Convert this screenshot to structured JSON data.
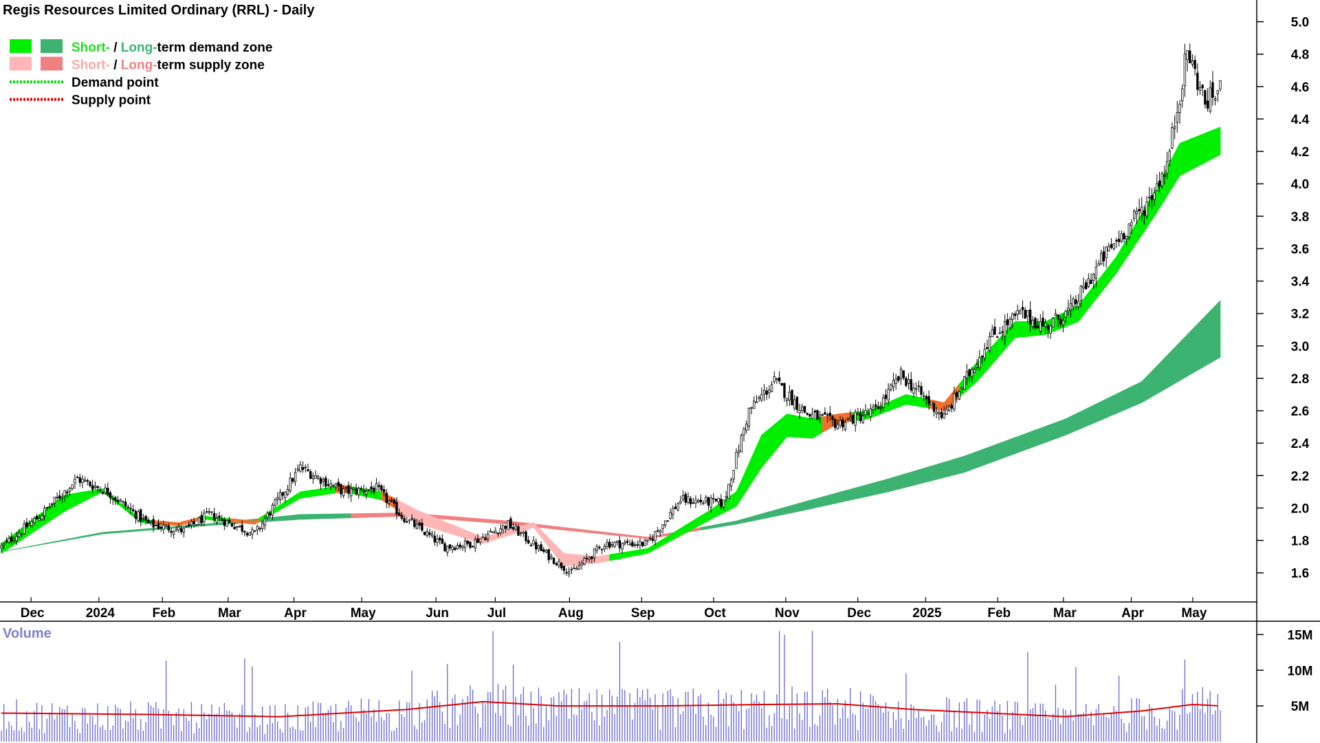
{
  "chart_data": {
    "type": "candlestick",
    "title": "Regis Resources Limited Ordinary (RRL) - Daily",
    "legend": [
      {
        "parts": [
          {
            "text": "Short-",
            "color": "#22dd22"
          },
          {
            "text": " / ",
            "color": "#000000"
          },
          {
            "text": "Long-",
            "color": "#3cb371"
          },
          {
            "text": "term demand zone",
            "color": "#000000"
          }
        ],
        "swatches": [
          "#00ee00",
          "#3cb371"
        ]
      },
      {
        "parts": [
          {
            "text": "Short-",
            "color": "#f5a9a9"
          },
          {
            "text": " / ",
            "color": "#000000"
          },
          {
            "text": "Long-",
            "color": "#f08080"
          },
          {
            "text": "term supply zone",
            "color": "#000000"
          }
        ],
        "swatches": [
          "#ffb6b6",
          "#f08080"
        ]
      },
      {
        "parts": [
          {
            "text": "Demand point",
            "color": "#000000"
          }
        ],
        "line": "#00dd00"
      },
      {
        "parts": [
          {
            "text": "Supply point",
            "color": "#000000"
          }
        ],
        "line": "#dd0000"
      }
    ],
    "x_tick_labels": [
      "Dec",
      "2024",
      "Feb",
      "Mar",
      "Apr",
      "May",
      "Jun",
      "Jul",
      "Aug",
      "Sep",
      "Oct",
      "Nov",
      "Dec",
      "2025",
      "Feb",
      "Mar",
      "Apr",
      "May"
    ],
    "y_tick_labels": [
      "1.6",
      "1.8",
      "2.0",
      "2.2",
      "2.4",
      "2.6",
      "2.8",
      "3.0",
      "3.2",
      "3.4",
      "3.6",
      "3.8",
      "4.0",
      "4.2",
      "4.4",
      "4.6",
      "4.8",
      "5.0"
    ],
    "ylim": [
      1.45,
      5.1
    ],
    "price_keypoints": [
      [
        0,
        1.76
      ],
      [
        15,
        1.95
      ],
      [
        30,
        2.18
      ],
      [
        42,
        2.1
      ],
      [
        58,
        1.9
      ],
      [
        72,
        1.86
      ],
      [
        82,
        1.96
      ],
      [
        100,
        1.84
      ],
      [
        118,
        2.25
      ],
      [
        135,
        2.1
      ],
      [
        148,
        2.12
      ],
      [
        158,
        1.95
      ],
      [
        175,
        1.76
      ],
      [
        185,
        1.78
      ],
      [
        200,
        1.9
      ],
      [
        212,
        1.75
      ],
      [
        225,
        1.6
      ],
      [
        238,
        1.78
      ],
      [
        255,
        1.78
      ],
      [
        268,
        2.05
      ],
      [
        285,
        2.03
      ],
      [
        295,
        2.6
      ],
      [
        305,
        2.78
      ],
      [
        318,
        2.58
      ],
      [
        330,
        2.52
      ],
      [
        345,
        2.6
      ],
      [
        355,
        2.82
      ],
      [
        372,
        2.56
      ],
      [
        390,
        3.05
      ],
      [
        402,
        3.2
      ],
      [
        412,
        3.12
      ],
      [
        422,
        3.22
      ],
      [
        435,
        3.55
      ],
      [
        452,
        3.88
      ],
      [
        460,
        4.12
      ],
      [
        468,
        4.82
      ],
      [
        475,
        4.5
      ],
      [
        481,
        4.58
      ]
    ],
    "short_term_demand_zone": [
      [
        0,
        1.78,
        1.72
      ],
      [
        25,
        2.08,
        1.98
      ],
      [
        40,
        2.12,
        2.1
      ],
      [
        55,
        1.93,
        1.91
      ],
      [
        70,
        1.91,
        1.89
      ],
      [
        80,
        1.95,
        1.93
      ],
      [
        100,
        1.92,
        1.9
      ],
      [
        118,
        2.1,
        2.06
      ],
      [
        135,
        2.14,
        2.1
      ],
      [
        150,
        2.1,
        2.05
      ],
      [
        165,
        1.98,
        1.9
      ],
      [
        190,
        1.82,
        1.78
      ],
      [
        210,
        1.91,
        1.88
      ],
      [
        222,
        1.72,
        1.64
      ],
      [
        235,
        1.7,
        1.66
      ],
      [
        255,
        1.75,
        1.72
      ],
      [
        280,
        1.99,
        1.93
      ],
      [
        290,
        2.1,
        2.01
      ],
      [
        300,
        2.45,
        2.25
      ],
      [
        310,
        2.58,
        2.44
      ],
      [
        320,
        2.55,
        2.43
      ],
      [
        330,
        2.58,
        2.52
      ],
      [
        342,
        2.6,
        2.55
      ],
      [
        357,
        2.7,
        2.64
      ],
      [
        372,
        2.65,
        2.6
      ],
      [
        385,
        2.9,
        2.78
      ],
      [
        400,
        3.15,
        3.05
      ],
      [
        412,
        3.15,
        3.07
      ],
      [
        425,
        3.25,
        3.15
      ],
      [
        440,
        3.55,
        3.45
      ],
      [
        455,
        3.95,
        3.8
      ],
      [
        465,
        4.25,
        4.05
      ],
      [
        481,
        4.35,
        4.18
      ]
    ],
    "long_term_demand_zone": [
      [
        0,
        1.73,
        1.73
      ],
      [
        40,
        1.85,
        1.84
      ],
      [
        80,
        1.9,
        1.89
      ],
      [
        118,
        1.96,
        1.93
      ],
      [
        160,
        1.97,
        1.95
      ],
      [
        200,
        1.92,
        1.9
      ],
      [
        255,
        1.82,
        1.81
      ],
      [
        290,
        1.92,
        1.9
      ],
      [
        315,
        2.03,
        1.98
      ],
      [
        350,
        2.18,
        2.1
      ],
      [
        380,
        2.32,
        2.22
      ],
      [
        420,
        2.55,
        2.45
      ],
      [
        450,
        2.78,
        2.65
      ],
      [
        481,
        3.28,
        2.93
      ]
    ],
    "volume": {
      "label": "Volume",
      "y_tick_labels": [
        "5M",
        "10M",
        "15M"
      ],
      "ylim": [
        0,
        16
      ],
      "avg_keypoints": [
        [
          0,
          4.0
        ],
        [
          60,
          3.8
        ],
        [
          110,
          3.5
        ],
        [
          160,
          4.5
        ],
        [
          190,
          5.6
        ],
        [
          220,
          5.0
        ],
        [
          260,
          5.0
        ],
        [
          300,
          5.2
        ],
        [
          330,
          5.3
        ],
        [
          360,
          4.5
        ],
        [
          390,
          4.0
        ],
        [
          420,
          3.5
        ],
        [
          450,
          4.3
        ],
        [
          470,
          5.2
        ],
        [
          481,
          5.0
        ]
      ]
    }
  }
}
